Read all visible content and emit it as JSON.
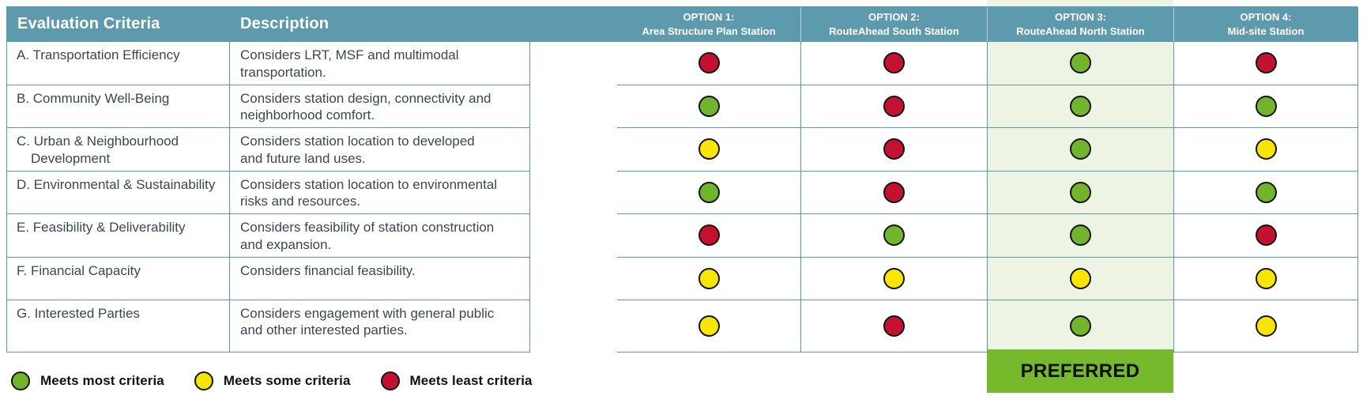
{
  "colors": {
    "header_bg": "#5d9aad",
    "border": "#5d9aad",
    "text": "#3b474f",
    "highlight": "#edf4e4",
    "badge_bg": "#77b92c",
    "green": "#72b52c",
    "yellow": "#f9e600",
    "red": "#c2122f",
    "dot_border": "#141414"
  },
  "table": {
    "col1_header": "Evaluation Criteria",
    "col2_header": "Description",
    "options": [
      {
        "line1": "OPTION 1:",
        "line2": "Area Structure Plan Station",
        "preferred": false
      },
      {
        "line1": "OPTION 2:",
        "line2": "RouteAhead South Station",
        "preferred": false
      },
      {
        "line1": "OPTION 3:",
        "line2": "RouteAhead North Station",
        "preferred": true
      },
      {
        "line1": "OPTION 4:",
        "line2": "Mid-site Station",
        "preferred": false
      }
    ],
    "rows": [
      {
        "criteria": "A. Transportation Efficiency",
        "description_lines": [
          "Considers LRT, MSF and multimodal",
          "transportation."
        ],
        "ratings": [
          "red",
          "red",
          "green",
          "red"
        ]
      },
      {
        "criteria": "B. Community Well-Being",
        "description_lines": [
          "Considers station design, connectivity and",
          "neighborhood comfort."
        ],
        "ratings": [
          "green",
          "red",
          "green",
          "green"
        ]
      },
      {
        "criteria": "C. Urban & Neighbourhood Development",
        "description_lines": [
          "Considers station location to developed",
          "and future land uses."
        ],
        "ratings": [
          "yellow",
          "red",
          "green",
          "yellow"
        ]
      },
      {
        "criteria": "D. Environmental & Sustainability",
        "description_lines": [
          "Considers station location to environmental",
          "risks and resources."
        ],
        "ratings": [
          "green",
          "red",
          "green",
          "green"
        ]
      },
      {
        "criteria": "E. Feasibility & Deliverability",
        "description_lines": [
          "Considers feasibility of station construction",
          "and expansion."
        ],
        "ratings": [
          "red",
          "green",
          "green",
          "red"
        ]
      },
      {
        "criteria": "F. Financial Capacity",
        "description_lines": [
          "Considers financial feasibility."
        ],
        "ratings": [
          "yellow",
          "yellow",
          "yellow",
          "yellow"
        ]
      },
      {
        "criteria": "G. Interested Parties",
        "description_lines": [
          "Considers engagement with general public",
          "and other interested parties."
        ],
        "ratings": [
          "yellow",
          "red",
          "green",
          "yellow"
        ]
      }
    ]
  },
  "preferred_label": "PREFERRED",
  "legend": [
    {
      "color": "green",
      "label": "Meets most criteria"
    },
    {
      "color": "yellow",
      "label": "Meets some criteria"
    },
    {
      "color": "red",
      "label": "Meets least criteria"
    }
  ]
}
